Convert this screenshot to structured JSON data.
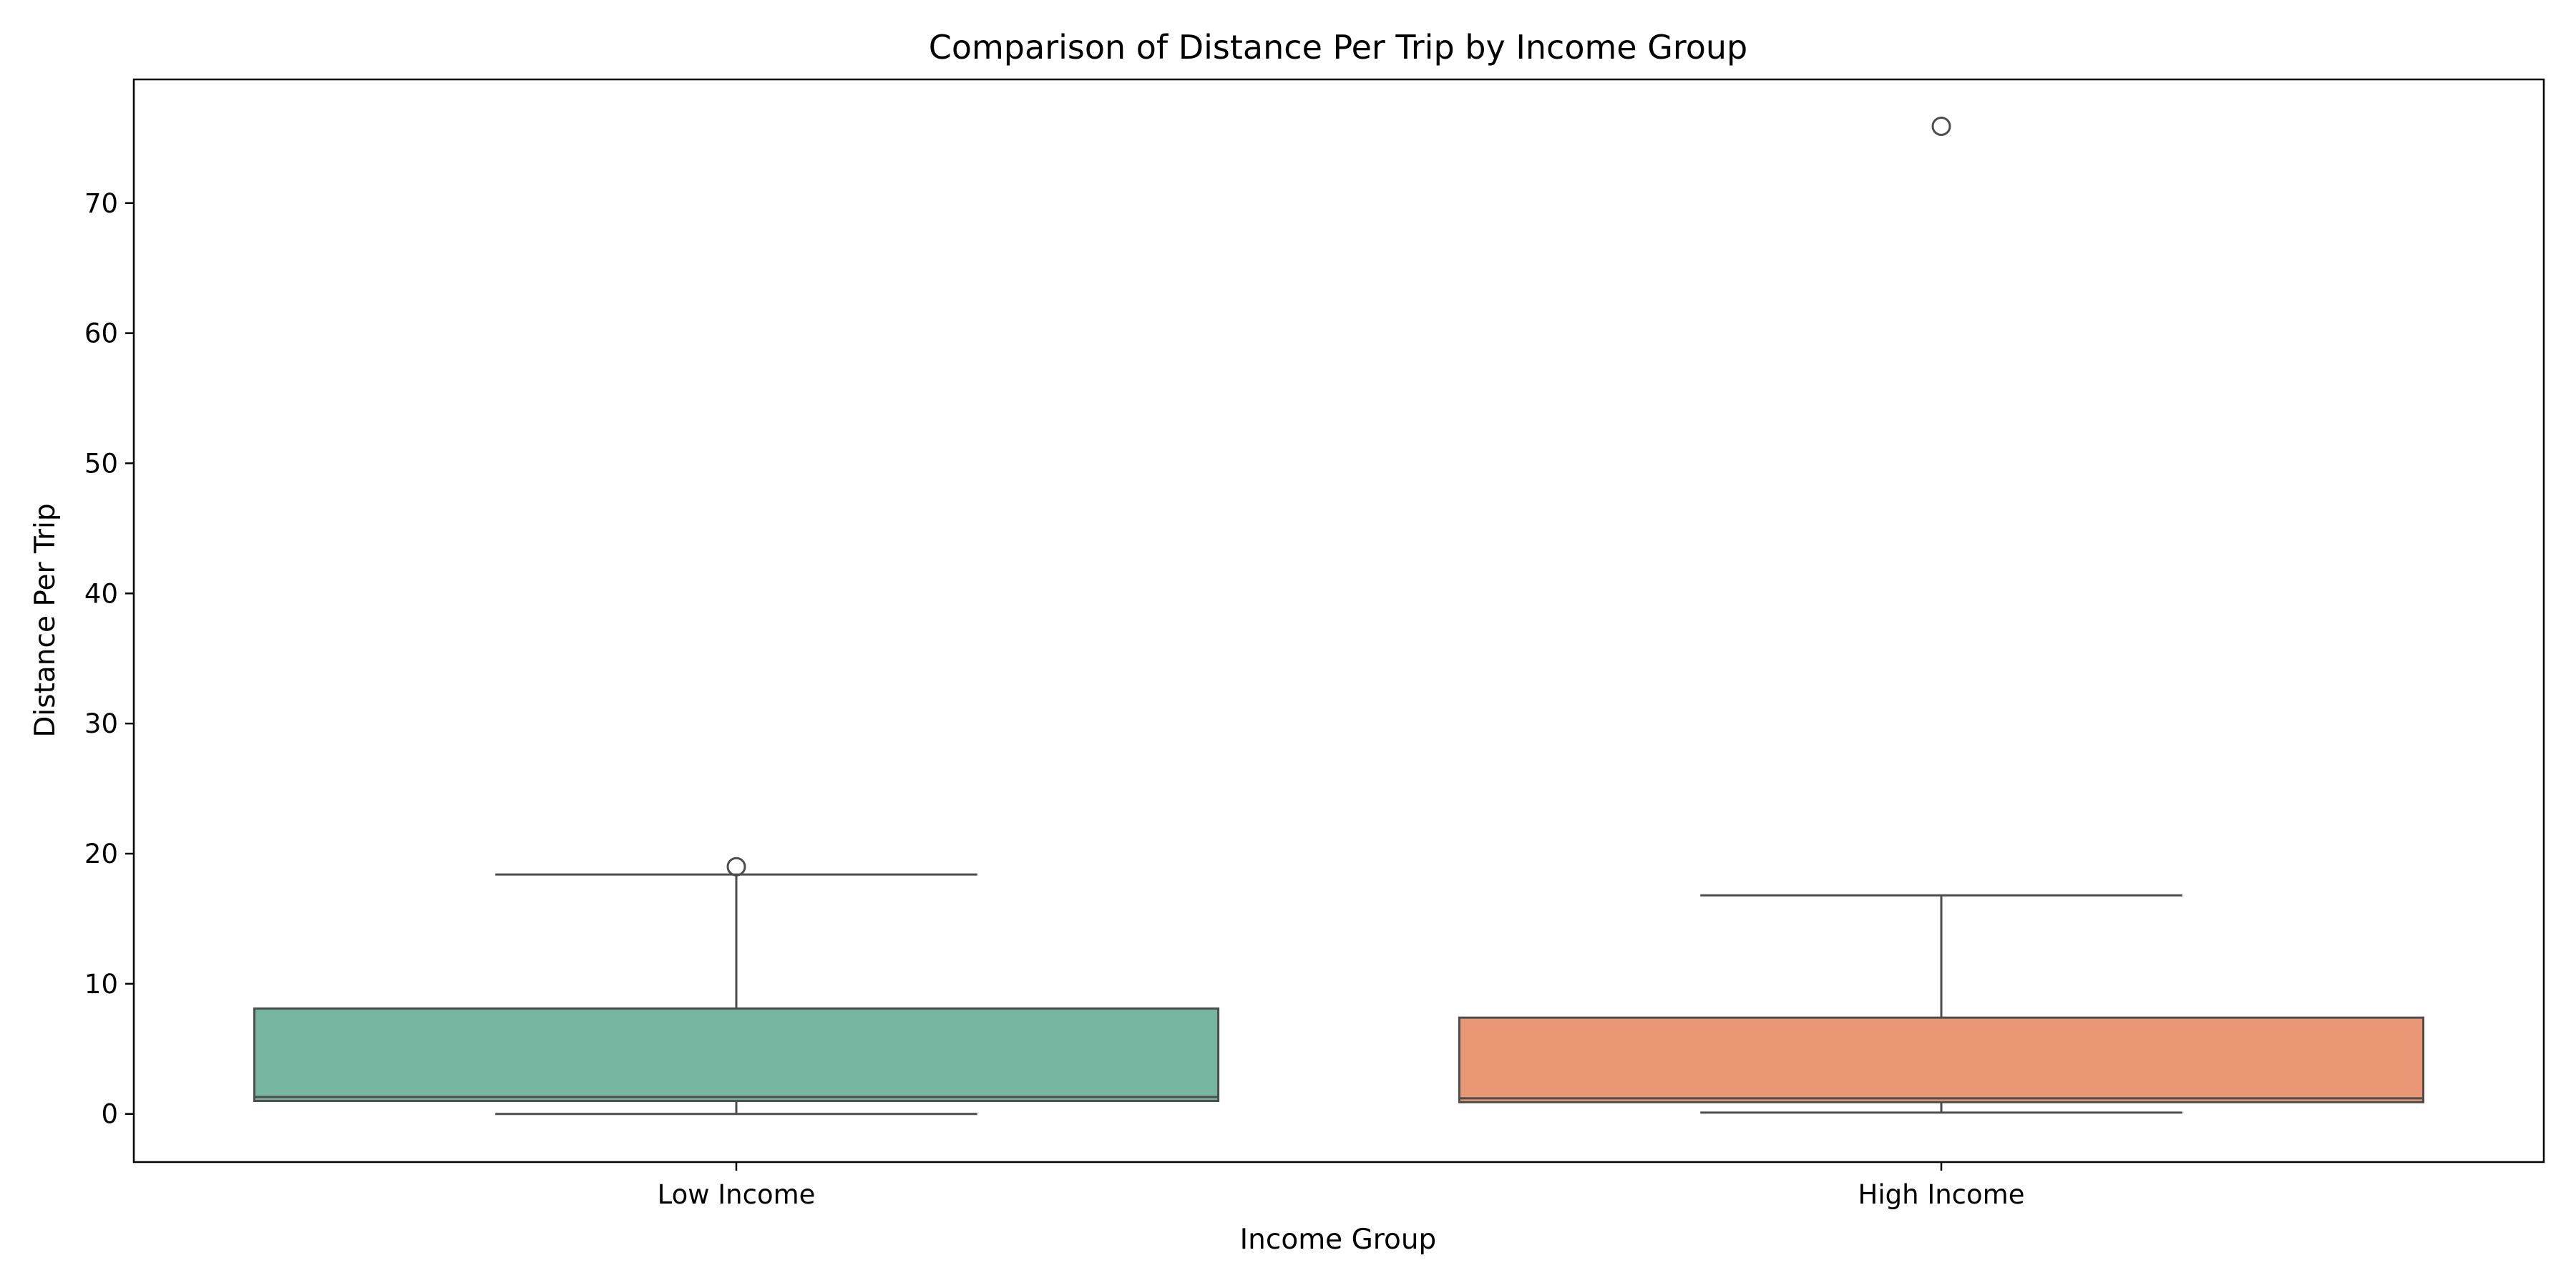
{
  "chart_data": {
    "type": "box",
    "title": "Comparison of Distance Per Trip by Income Group",
    "xlabel": "Income Group",
    "ylabel": "Distance Per Trip",
    "ylim": [
      -3.7,
      79.5
    ],
    "yticks": [
      0,
      10,
      20,
      30,
      40,
      50,
      60,
      70
    ],
    "grid": false,
    "categories": [
      "Low Income",
      "High Income"
    ],
    "boxes": [
      {
        "category": "Low Income",
        "color": "#76b6a1",
        "whisker_low": 0.0,
        "q1": 1.0,
        "median": 1.3,
        "q3": 8.1,
        "whisker_high": 18.4,
        "outliers": [
          19.0
        ]
      },
      {
        "category": "High Income",
        "color": "#e99774",
        "whisker_low": 0.1,
        "q1": 0.9,
        "median": 1.2,
        "q3": 7.4,
        "whisker_high": 16.8,
        "outliers": [
          75.9
        ]
      }
    ]
  }
}
